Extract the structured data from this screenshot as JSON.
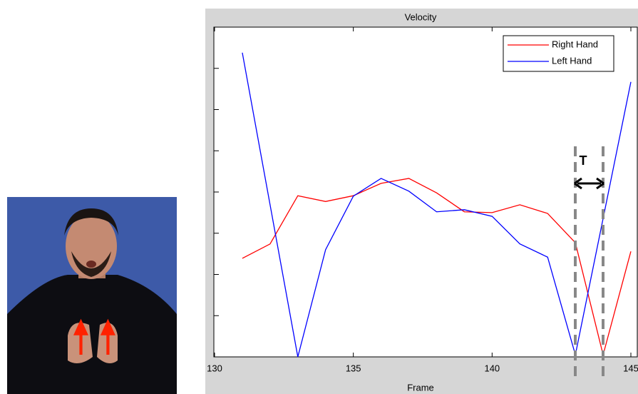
{
  "chart_data": {
    "type": "line",
    "title": "Velocity",
    "x_label": "Frame",
    "x": [
      131,
      132,
      133,
      134,
      135,
      136,
      137,
      138,
      139,
      140,
      141,
      142,
      143,
      144,
      145
    ],
    "series": [
      {
        "name": "Right Hand",
        "color": "#ff0000",
        "values": [
          2.39,
          2.74,
          3.91,
          3.77,
          3.91,
          4.21,
          4.33,
          3.98,
          3.52,
          3.5,
          3.69,
          3.48,
          2.77,
          0.05,
          2.56
        ]
      },
      {
        "name": "Left Hand",
        "color": "#0000ff",
        "values": [
          7.38,
          3.69,
          0,
          2.6,
          3.9,
          4.33,
          4.02,
          3.52,
          3.57,
          3.41,
          2.74,
          2.42,
          0.05,
          3.36,
          6.67
        ]
      }
    ],
    "xlim": [
      130,
      145
    ],
    "xticks": [
      130,
      135,
      140,
      145
    ],
    "ylim": [
      0,
      8
    ],
    "yticks": [
      1,
      2,
      3,
      4,
      5,
      6,
      7
    ],
    "legend": "top-right",
    "annotation": "T"
  }
}
